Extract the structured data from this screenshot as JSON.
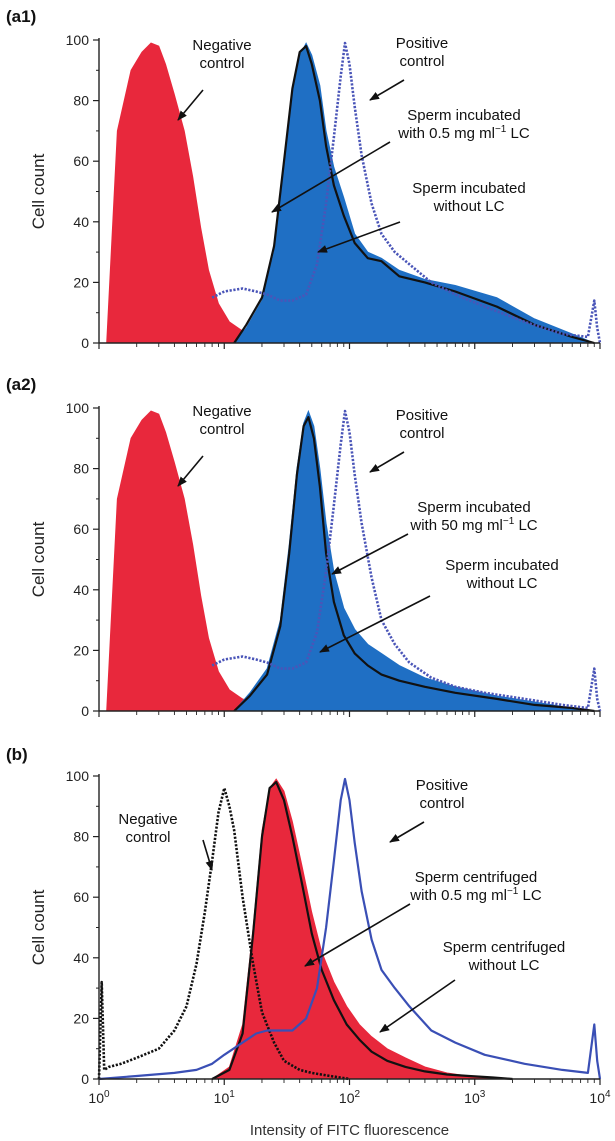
{
  "chart_data": [
    {
      "type": "area",
      "panel_label": "(a1)",
      "xscale": "log",
      "xlim": [
        1,
        10000
      ],
      "ylim": [
        0,
        100
      ],
      "ylabel": "Cell count",
      "yticks": [
        "0",
        "20",
        "40",
        "60",
        "80",
        "100"
      ],
      "series": [
        {
          "name": "Negative control",
          "style": "filled",
          "color": "#e8283c",
          "x": [
            1.15,
            1.4,
            1.8,
            2.2,
            2.6,
            3.0,
            3.4,
            4.0,
            4.8,
            5.6,
            6.5,
            7.5,
            9.0,
            11,
            14,
            18,
            25,
            35,
            50
          ],
          "y": [
            0,
            70,
            90,
            96,
            99,
            98,
            92,
            82,
            70,
            55,
            38,
            24,
            13,
            7,
            4,
            2.5,
            1.5,
            0.8,
            0
          ]
        },
        {
          "name": "Sperm incubated without LC",
          "style": "filled",
          "color": "#1f6fc4",
          "x": [
            12,
            15,
            20,
            25,
            30,
            35,
            40,
            45,
            50,
            58,
            65,
            75,
            90,
            110,
            140,
            180,
            250,
            400,
            700,
            1500,
            3000,
            6000,
            9000
          ],
          "y": [
            0,
            5,
            14,
            30,
            58,
            82,
            95,
            99,
            95,
            85,
            70,
            58,
            48,
            36,
            30,
            28,
            24,
            21,
            19,
            15,
            8,
            3,
            0
          ]
        },
        {
          "name": "Sperm incubated with 0.5 mg ml⁻¹ LC",
          "style": "solid",
          "color": "#111111",
          "x": [
            12,
            15,
            20,
            25,
            30,
            35,
            40,
            45,
            50,
            58,
            65,
            75,
            90,
            110,
            140,
            180,
            250,
            400,
            700,
            1500,
            3000,
            6000,
            9000
          ],
          "y": [
            0,
            6,
            15,
            32,
            60,
            84,
            96,
            98,
            92,
            80,
            65,
            52,
            42,
            33,
            28,
            27,
            22,
            20,
            17,
            12,
            6,
            2,
            0
          ]
        },
        {
          "name": "Positive control",
          "style": "dotted",
          "color": "#4a55b8",
          "x": [
            8,
            10,
            14,
            18,
            22,
            28,
            35,
            45,
            55,
            65,
            75,
            85,
            92,
            100,
            110,
            125,
            150,
            180,
            230,
            300,
            450,
            700,
            1200,
            2500,
            5000,
            8000,
            9000,
            9500,
            10000
          ],
          "y": [
            15,
            17,
            18,
            17,
            16,
            14,
            14,
            16,
            26,
            46,
            68,
            88,
            99,
            92,
            78,
            62,
            46,
            36,
            30,
            26,
            20,
            16,
            12,
            7,
            3,
            2,
            14,
            5,
            0
          ]
        }
      ],
      "annotations": [
        {
          "lines": [
            "Negative",
            "control"
          ]
        },
        {
          "lines": [
            "Positive",
            "control"
          ]
        },
        {
          "lines": [
            "Sperm incubated",
            "with 0.5 mg ml",
            "LC"
          ],
          "superscript": "−1"
        },
        {
          "lines": [
            "Sperm incubated",
            "without LC"
          ]
        }
      ]
    },
    {
      "type": "area",
      "panel_label": "(a2)",
      "xscale": "log",
      "xlim": [
        1,
        10000
      ],
      "ylim": [
        0,
        100
      ],
      "ylabel": "Cell count",
      "yticks": [
        "0",
        "20",
        "40",
        "60",
        "80",
        "100"
      ],
      "series": [
        {
          "name": "Negative control",
          "style": "filled",
          "color": "#e8283c",
          "x": [
            1.15,
            1.4,
            1.8,
            2.2,
            2.6,
            3.0,
            3.4,
            4.0,
            4.8,
            5.6,
            6.5,
            7.5,
            9.0,
            11,
            14,
            18,
            25,
            35,
            50
          ],
          "y": [
            0,
            70,
            90,
            96,
            99,
            98,
            92,
            82,
            70,
            55,
            38,
            24,
            13,
            7,
            4,
            2.5,
            1.5,
            0.8,
            0
          ]
        },
        {
          "name": "Sperm incubated without LC",
          "style": "filled",
          "color": "#1f6fc4",
          "x": [
            12,
            16,
            22,
            28,
            33,
            38,
            43,
            47,
            52,
            58,
            65,
            75,
            90,
            110,
            140,
            180,
            250,
            400,
            700,
            1500,
            3000,
            6000,
            9000
          ],
          "y": [
            0,
            6,
            14,
            30,
            55,
            80,
            95,
            99,
            94,
            80,
            62,
            46,
            34,
            27,
            22,
            19,
            15,
            11,
            8,
            5,
            3,
            1,
            0
          ]
        },
        {
          "name": "Sperm incubated with 50 mg ml⁻¹ LC",
          "style": "solid",
          "color": "#111111",
          "x": [
            12,
            16,
            22,
            28,
            33,
            38,
            43,
            47,
            52,
            58,
            65,
            75,
            90,
            110,
            140,
            180,
            250,
            400,
            700,
            1500,
            3000,
            6000,
            9000
          ],
          "y": [
            0,
            5,
            12,
            28,
            52,
            78,
            94,
            97,
            90,
            74,
            52,
            36,
            25,
            19,
            15,
            12,
            10,
            8,
            6,
            4,
            2,
            1,
            0
          ]
        },
        {
          "name": "Positive control",
          "style": "dotted",
          "color": "#4a55b8",
          "x": [
            8,
            10,
            14,
            18,
            22,
            28,
            35,
            45,
            55,
            65,
            75,
            85,
            92,
            100,
            110,
            125,
            150,
            180,
            230,
            300,
            450,
            700,
            1200,
            2500,
            5000,
            8000,
            9000,
            9500,
            10000
          ],
          "y": [
            15,
            17,
            18,
            17,
            16,
            14,
            14,
            16,
            26,
            46,
            68,
            88,
            99,
            92,
            78,
            62,
            44,
            30,
            22,
            16,
            11,
            8,
            6,
            4,
            2,
            1,
            14,
            4,
            0
          ]
        }
      ],
      "annotations": [
        {
          "lines": [
            "Negative",
            "control"
          ]
        },
        {
          "lines": [
            "Positive",
            "control"
          ]
        },
        {
          "lines": [
            "Sperm incubated",
            "with 50 mg ml",
            "LC"
          ],
          "superscript": "−1"
        },
        {
          "lines": [
            "Sperm incubated",
            "without LC"
          ]
        }
      ]
    },
    {
      "type": "area",
      "panel_label": "(b)",
      "xscale": "log",
      "xlim": [
        1,
        10000
      ],
      "ylim": [
        0,
        100
      ],
      "ylabel": "Cell count",
      "xlabel": "Intensity of FITC fluorescence",
      "yticks": [
        "0",
        "20",
        "40",
        "60",
        "80",
        "100"
      ],
      "xticks": [
        {
          "base": "10",
          "exp": "0"
        },
        {
          "base": "10",
          "exp": "1"
        },
        {
          "base": "10",
          "exp": "2"
        },
        {
          "base": "10",
          "exp": "3"
        },
        {
          "base": "10",
          "exp": "4"
        }
      ],
      "series": [
        {
          "name": "Sperm centrifuged without LC",
          "style": "filled",
          "color": "#e8283c",
          "x": [
            8,
            11,
            14,
            17,
            20,
            23,
            26,
            30,
            35,
            42,
            50,
            60,
            75,
            95,
            120,
            150,
            200,
            280,
            400,
            600,
            900,
            1400,
            2000
          ],
          "y": [
            0,
            4,
            18,
            50,
            82,
            96,
            99,
            95,
            85,
            70,
            55,
            42,
            32,
            24,
            18,
            14,
            10,
            7,
            4,
            2,
            1,
            0.5,
            0
          ]
        },
        {
          "name": "Sperm centrifuged with 0.5 mg ml⁻¹ LC",
          "style": "solid",
          "color": "#111111",
          "x": [
            8,
            11,
            14,
            17,
            20,
            23,
            26,
            30,
            35,
            42,
            50,
            60,
            75,
            95,
            120,
            150,
            200,
            280,
            400,
            600,
            900,
            1400,
            2000
          ],
          "y": [
            0,
            3,
            15,
            48,
            80,
            96,
            98,
            92,
            80,
            64,
            48,
            36,
            26,
            18,
            13,
            9,
            6,
            4,
            2.5,
            1.5,
            1,
            0.5,
            0
          ]
        },
        {
          "name": "Negative control",
          "style": "dotted",
          "color": "#111111",
          "x": [
            1.0,
            1.05,
            1.1,
            1.2,
            1.5,
            2,
            3,
            4,
            5,
            6,
            7,
            8,
            9,
            10,
            11,
            12,
            14,
            17,
            20,
            25,
            30,
            40,
            50,
            70,
            100
          ],
          "y": [
            0,
            32,
            3,
            4,
            5,
            7,
            10,
            16,
            24,
            38,
            55,
            72,
            88,
            96,
            90,
            82,
            60,
            38,
            22,
            12,
            6,
            3,
            2,
            1,
            0
          ]
        },
        {
          "name": "Positive control",
          "style": "solid",
          "color": "#3a4fb5",
          "x": [
            1,
            2,
            4,
            6,
            8,
            10,
            14,
            18,
            22,
            28,
            35,
            45,
            55,
            65,
            75,
            85,
            92,
            100,
            110,
            125,
            150,
            180,
            230,
            300,
            450,
            700,
            1200,
            2500,
            5000,
            8000,
            9000,
            9500,
            10000
          ],
          "y": [
            0,
            1,
            2,
            3,
            5,
            8,
            12,
            15,
            16,
            16,
            16,
            20,
            30,
            50,
            72,
            92,
            99,
            92,
            78,
            62,
            46,
            36,
            30,
            24,
            16,
            12,
            8,
            5,
            3,
            2,
            18,
            6,
            0
          ]
        }
      ],
      "annotations": [
        {
          "lines": [
            "Negative",
            "control"
          ]
        },
        {
          "lines": [
            "Positive",
            "control"
          ]
        },
        {
          "lines": [
            "Sperm centrifuged",
            "with 0.5 mg ml",
            "LC"
          ],
          "superscript": "−1"
        },
        {
          "lines": [
            "Sperm centrifuged",
            "without LC"
          ]
        }
      ]
    }
  ]
}
